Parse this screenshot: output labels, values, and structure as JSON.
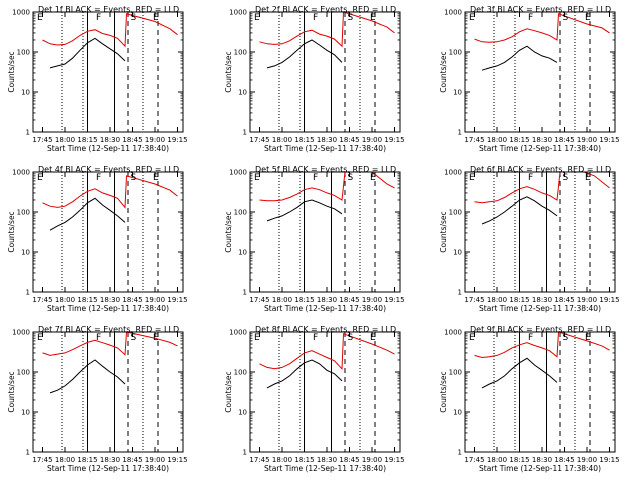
{
  "chart_data": {
    "type": "line",
    "layout": "3x3 grid",
    "shared": {
      "xlabel": "Start Time (12-Sep-11 17:38:40)",
      "ylabel": "Counts/sec",
      "x_tick_labels": [
        "17:45",
        "18:00",
        "18:15",
        "18:30",
        "18:45",
        "19:00",
        "19:15"
      ],
      "y_tick_labels": [
        "1",
        "10",
        "100",
        "1000"
      ],
      "y_scale": "log",
      "ylim": [
        1,
        1000
      ],
      "xlim": [
        "17:38:40",
        "19:18:40"
      ],
      "grid": false,
      "series_colors": {
        "events": "#000000",
        "lld": "#e00000"
      },
      "interval_markers": [
        "E",
        "F",
        "S",
        "E"
      ]
    },
    "panels": [
      {
        "title": "Det 1f  BLACK = Events, RED = LLD",
        "solid_lines": [
          "18:15",
          "18:33"
        ],
        "dashed_lines": [
          "18:42",
          "19:02"
        ],
        "dotted_lines": [
          "17:58",
          "18:12",
          "18:52"
        ],
        "events": [
          [
            "17:50",
            40
          ],
          [
            "17:55",
            45
          ],
          [
            "18:00",
            50
          ],
          [
            "18:05",
            70
          ],
          [
            "18:10",
            110
          ],
          [
            "18:15",
            170
          ],
          [
            "18:20",
            220
          ],
          [
            "18:25",
            160
          ],
          [
            "18:30",
            120
          ],
          [
            "18:35",
            90
          ],
          [
            "18:40",
            60
          ]
        ],
        "lld": [
          [
            "17:45",
            200
          ],
          [
            "17:50",
            160
          ],
          [
            "17:55",
            150
          ],
          [
            "18:00",
            155
          ],
          [
            "18:05",
            190
          ],
          [
            "18:10",
            260
          ],
          [
            "18:15",
            330
          ],
          [
            "18:20",
            360
          ],
          [
            "18:25",
            290
          ],
          [
            "18:30",
            260
          ],
          [
            "18:35",
            220
          ],
          [
            "18:40",
            140
          ],
          [
            "18:41",
            900
          ],
          [
            "19:00",
            580
          ],
          [
            "19:10",
            380
          ],
          [
            "19:15",
            270
          ]
        ]
      },
      {
        "title": "Det 2f  BLACK = Events, RED = LLD",
        "solid_lines": [
          "18:15",
          "18:33"
        ],
        "dashed_lines": [
          "18:42",
          "19:02"
        ],
        "dotted_lines": [
          "17:58",
          "18:12",
          "18:52"
        ],
        "events": [
          [
            "17:50",
            40
          ],
          [
            "17:55",
            45
          ],
          [
            "18:00",
            55
          ],
          [
            "18:05",
            75
          ],
          [
            "18:10",
            110
          ],
          [
            "18:15",
            160
          ],
          [
            "18:20",
            200
          ],
          [
            "18:25",
            150
          ],
          [
            "18:30",
            110
          ],
          [
            "18:35",
            85
          ],
          [
            "18:40",
            55
          ]
        ],
        "lld": [
          [
            "17:45",
            180
          ],
          [
            "17:50",
            160
          ],
          [
            "17:55",
            155
          ],
          [
            "18:00",
            160
          ],
          [
            "18:05",
            190
          ],
          [
            "18:10",
            250
          ],
          [
            "18:15",
            320
          ],
          [
            "18:20",
            350
          ],
          [
            "18:25",
            280
          ],
          [
            "18:30",
            250
          ],
          [
            "18:35",
            210
          ],
          [
            "18:40",
            140
          ],
          [
            "18:41",
            1000
          ],
          [
            "19:00",
            600
          ],
          [
            "19:10",
            420
          ],
          [
            "19:15",
            300
          ]
        ]
      },
      {
        "title": "Det 3f  BLACK = Events, RED = LLD",
        "solid_lines": [],
        "dashed_lines": [
          "18:42",
          "19:02"
        ],
        "dotted_lines": [
          "17:58",
          "18:12",
          "18:52"
        ],
        "events": [
          [
            "17:50",
            35
          ],
          [
            "17:55",
            40
          ],
          [
            "18:00",
            45
          ],
          [
            "18:05",
            55
          ],
          [
            "18:10",
            75
          ],
          [
            "18:15",
            110
          ],
          [
            "18:20",
            140
          ],
          [
            "18:25",
            100
          ],
          [
            "18:30",
            80
          ],
          [
            "18:35",
            70
          ],
          [
            "18:40",
            55
          ]
        ],
        "lld": [
          [
            "17:45",
            210
          ],
          [
            "17:50",
            180
          ],
          [
            "17:55",
            175
          ],
          [
            "18:00",
            180
          ],
          [
            "18:05",
            200
          ],
          [
            "18:10",
            240
          ],
          [
            "18:15",
            320
          ],
          [
            "18:20",
            380
          ],
          [
            "18:25",
            340
          ],
          [
            "18:30",
            300
          ],
          [
            "18:35",
            260
          ],
          [
            "18:40",
            200
          ],
          [
            "18:41",
            900
          ],
          [
            "19:00",
            500
          ],
          [
            "19:10",
            400
          ],
          [
            "19:15",
            300
          ]
        ]
      },
      {
        "title": "Det 4f  BLACK = Events, RED = LLD",
        "solid_lines": [
          "18:15",
          "18:33"
        ],
        "dashed_lines": [
          "18:42",
          "19:02"
        ],
        "dotted_lines": [
          "17:58",
          "18:12",
          "18:52"
        ],
        "events": [
          [
            "17:50",
            35
          ],
          [
            "17:55",
            45
          ],
          [
            "18:00",
            55
          ],
          [
            "18:05",
            75
          ],
          [
            "18:10",
            110
          ],
          [
            "18:15",
            170
          ],
          [
            "18:20",
            220
          ],
          [
            "18:25",
            150
          ],
          [
            "18:30",
            110
          ],
          [
            "18:35",
            80
          ],
          [
            "18:40",
            55
          ]
        ],
        "lld": [
          [
            "17:45",
            170
          ],
          [
            "17:50",
            140
          ],
          [
            "17:55",
            130
          ],
          [
            "18:00",
            140
          ],
          [
            "18:05",
            180
          ],
          [
            "18:10",
            250
          ],
          [
            "18:15",
            330
          ],
          [
            "18:20",
            380
          ],
          [
            "18:25",
            300
          ],
          [
            "18:30",
            260
          ],
          [
            "18:35",
            220
          ],
          [
            "18:40",
            130
          ],
          [
            "18:41",
            800
          ],
          [
            "19:00",
            500
          ],
          [
            "19:10",
            350
          ],
          [
            "19:15",
            250
          ]
        ]
      },
      {
        "title": "Det 5f  BLACK = Events, RED = LLD",
        "solid_lines": [
          "18:15",
          "18:33"
        ],
        "dashed_lines": [
          "18:42",
          "19:02"
        ],
        "dotted_lines": [
          "17:58",
          "18:12",
          "18:52"
        ],
        "events": [
          [
            "17:50",
            60
          ],
          [
            "17:55",
            70
          ],
          [
            "18:00",
            80
          ],
          [
            "18:05",
            100
          ],
          [
            "18:10",
            130
          ],
          [
            "18:15",
            180
          ],
          [
            "18:20",
            200
          ],
          [
            "18:25",
            170
          ],
          [
            "18:30",
            140
          ],
          [
            "18:35",
            120
          ],
          [
            "18:40",
            90
          ]
        ],
        "lld": [
          [
            "17:45",
            200
          ],
          [
            "17:50",
            190
          ],
          [
            "17:55",
            190
          ],
          [
            "18:00",
            200
          ],
          [
            "18:05",
            230
          ],
          [
            "18:10",
            280
          ],
          [
            "18:15",
            360
          ],
          [
            "18:20",
            400
          ],
          [
            "18:25",
            360
          ],
          [
            "18:30",
            300
          ],
          [
            "18:35",
            260
          ],
          [
            "18:40",
            200
          ],
          [
            "18:42",
            10000
          ],
          [
            "18:50",
            9000
          ],
          [
            "18:55",
            3000
          ],
          [
            "19:00",
            1000
          ],
          [
            "19:10",
            500
          ],
          [
            "19:15",
            400
          ]
        ]
      },
      {
        "title": "Det 6f  BLACK = Events, RED = LLD",
        "solid_lines": [
          "18:15",
          "18:33"
        ],
        "dashed_lines": [
          "18:42",
          "19:02"
        ],
        "dotted_lines": [
          "17:58",
          "18:12",
          "18:52"
        ],
        "events": [
          [
            "17:50",
            50
          ],
          [
            "17:55",
            60
          ],
          [
            "18:00",
            75
          ],
          [
            "18:05",
            100
          ],
          [
            "18:10",
            140
          ],
          [
            "18:15",
            200
          ],
          [
            "18:20",
            240
          ],
          [
            "18:25",
            190
          ],
          [
            "18:30",
            140
          ],
          [
            "18:35",
            110
          ],
          [
            "18:40",
            80
          ]
        ],
        "lld": [
          [
            "17:45",
            180
          ],
          [
            "17:50",
            170
          ],
          [
            "17:55",
            180
          ],
          [
            "18:00",
            190
          ],
          [
            "18:05",
            230
          ],
          [
            "18:10",
            300
          ],
          [
            "18:15",
            380
          ],
          [
            "18:20",
            430
          ],
          [
            "18:25",
            370
          ],
          [
            "18:30",
            300
          ],
          [
            "18:35",
            260
          ],
          [
            "18:40",
            200
          ],
          [
            "18:42",
            10000
          ],
          [
            "18:52",
            8000
          ],
          [
            "18:58",
            2000
          ],
          [
            "19:05",
            800
          ],
          [
            "19:15",
            400
          ]
        ]
      },
      {
        "title": "Det 7f  BLACK = Events, RED = LLD",
        "solid_lines": [
          "18:15",
          "18:33"
        ],
        "dashed_lines": [
          "18:42",
          "19:02"
        ],
        "dotted_lines": [
          "17:58",
          "18:12",
          "18:52"
        ],
        "events": [
          [
            "17:50",
            30
          ],
          [
            "17:55",
            35
          ],
          [
            "18:00",
            45
          ],
          [
            "18:05",
            65
          ],
          [
            "18:10",
            100
          ],
          [
            "18:15",
            150
          ],
          [
            "18:20",
            200
          ],
          [
            "18:25",
            140
          ],
          [
            "18:30",
            100
          ],
          [
            "18:35",
            75
          ],
          [
            "18:40",
            50
          ]
        ],
        "lld": [
          [
            "17:45",
            300
          ],
          [
            "17:50",
            260
          ],
          [
            "17:55",
            280
          ],
          [
            "18:00",
            300
          ],
          [
            "18:05",
            360
          ],
          [
            "18:10",
            450
          ],
          [
            "18:15",
            550
          ],
          [
            "18:20",
            620
          ],
          [
            "18:25",
            540
          ],
          [
            "18:30",
            470
          ],
          [
            "18:35",
            400
          ],
          [
            "18:40",
            270
          ],
          [
            "18:41",
            1000
          ],
          [
            "19:00",
            700
          ],
          [
            "19:10",
            550
          ],
          [
            "19:15",
            450
          ]
        ]
      },
      {
        "title": "Det 8f  BLACK = Events, RED = LLD",
        "solid_lines": [
          "18:15",
          "18:33"
        ],
        "dashed_lines": [
          "18:42",
          "19:02"
        ],
        "dotted_lines": [
          "17:58",
          "18:12",
          "18:52"
        ],
        "events": [
          [
            "17:50",
            40
          ],
          [
            "17:55",
            50
          ],
          [
            "18:00",
            60
          ],
          [
            "18:05",
            80
          ],
          [
            "18:10",
            120
          ],
          [
            "18:15",
            170
          ],
          [
            "18:20",
            200
          ],
          [
            "18:25",
            160
          ],
          [
            "18:30",
            110
          ],
          [
            "18:35",
            90
          ],
          [
            "18:40",
            60
          ]
        ],
        "lld": [
          [
            "17:45",
            160
          ],
          [
            "17:50",
            130
          ],
          [
            "17:55",
            120
          ],
          [
            "18:00",
            130
          ],
          [
            "18:05",
            160
          ],
          [
            "18:10",
            220
          ],
          [
            "18:15",
            300
          ],
          [
            "18:20",
            340
          ],
          [
            "18:25",
            280
          ],
          [
            "18:30",
            230
          ],
          [
            "18:35",
            190
          ],
          [
            "18:40",
            120
          ],
          [
            "18:41",
            900
          ],
          [
            "19:00",
            500
          ],
          [
            "19:10",
            350
          ],
          [
            "19:15",
            280
          ]
        ]
      },
      {
        "title": "Det 9f  BLACK = Events, RED = LLD",
        "solid_lines": [
          "18:15",
          "18:33"
        ],
        "dashed_lines": [
          "18:42",
          "19:02"
        ],
        "dotted_lines": [
          "17:58",
          "18:12",
          "18:52"
        ],
        "events": [
          [
            "17:50",
            40
          ],
          [
            "17:55",
            50
          ],
          [
            "18:00",
            60
          ],
          [
            "18:05",
            80
          ],
          [
            "18:10",
            120
          ],
          [
            "18:15",
            170
          ],
          [
            "18:20",
            220
          ],
          [
            "18:25",
            150
          ],
          [
            "18:30",
            110
          ],
          [
            "18:35",
            80
          ],
          [
            "18:40",
            55
          ]
        ],
        "lld": [
          [
            "17:45",
            260
          ],
          [
            "17:50",
            230
          ],
          [
            "17:55",
            240
          ],
          [
            "18:00",
            260
          ],
          [
            "18:05",
            310
          ],
          [
            "18:10",
            400
          ],
          [
            "18:15",
            480
          ],
          [
            "18:20",
            540
          ],
          [
            "18:25",
            460
          ],
          [
            "18:30",
            400
          ],
          [
            "18:35",
            340
          ],
          [
            "18:40",
            240
          ],
          [
            "18:41",
            1000
          ],
          [
            "19:00",
            600
          ],
          [
            "19:10",
            450
          ],
          [
            "19:15",
            350
          ]
        ]
      }
    ]
  }
}
